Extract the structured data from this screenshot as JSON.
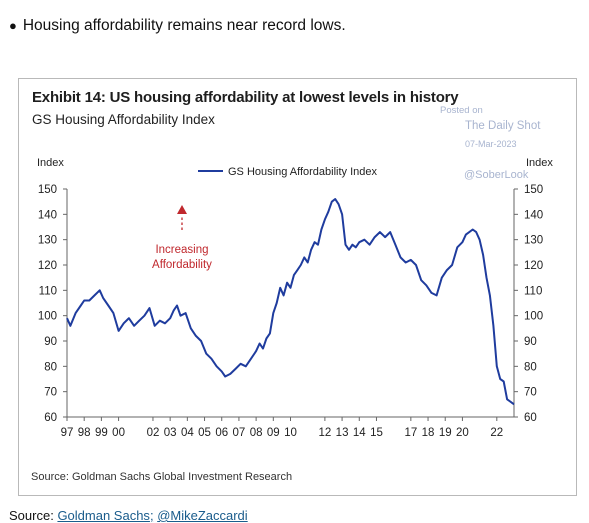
{
  "bullet_text": "Housing affordability remains near record lows.",
  "exhibit_title": "Exhibit 14: US housing affordability at lowest levels in history",
  "exhibit_subtitle": "GS Housing Affordability Index",
  "watermark": {
    "posted_on": "Posted on",
    "site": "The Daily Shot",
    "date": "07-Mar-2023",
    "handle": "@SoberLook"
  },
  "source_inside": "Source: Goldman Sachs Global Investment Research",
  "source_label": "Source:",
  "source_link1": "Goldman Sachs",
  "source_link2": "@MikeZaccardi",
  "colors": {
    "line": "#1f3c9e",
    "annotation": "#c0282d"
  },
  "chart_data": {
    "type": "line",
    "title": "Exhibit 14: US housing affordability at lowest levels in history",
    "subtitle": "GS Housing Affordability Index",
    "ylabel_left": "Index",
    "ylabel_right": "Index",
    "ylim": [
      60,
      150
    ],
    "yticks": [
      60,
      70,
      80,
      90,
      100,
      110,
      120,
      130,
      140,
      150
    ],
    "xlim": [
      1997,
      2023
    ],
    "xticks": [
      1997,
      1998,
      1999,
      2000,
      2002,
      2003,
      2004,
      2005,
      2006,
      2007,
      2008,
      2009,
      2010,
      2012,
      2013,
      2014,
      2015,
      2017,
      2018,
      2019,
      2020,
      2022
    ],
    "xtick_labels": [
      "97",
      "98",
      "99",
      "00",
      "02",
      "03",
      "04",
      "05",
      "06",
      "07",
      "08",
      "09",
      "10",
      "12",
      "13",
      "14",
      "15",
      "17",
      "18",
      "19",
      "20",
      "22"
    ],
    "legend_position": "top-center",
    "annotation": {
      "line1": "Increasing",
      "line2": "Affordability"
    },
    "series": [
      {
        "name": "GS Housing Affordability Index",
        "x": [
          1997.0,
          1997.2,
          1997.5,
          1997.8,
          1998.0,
          1998.3,
          1998.6,
          1998.9,
          1999.1,
          1999.4,
          1999.7,
          2000.0,
          2000.3,
          2000.6,
          2000.9,
          2001.2,
          2001.5,
          2001.8,
          2002.1,
          2002.4,
          2002.7,
          2003.0,
          2003.2,
          2003.4,
          2003.6,
          2003.9,
          2004.2,
          2004.5,
          2004.8,
          2005.1,
          2005.4,
          2005.7,
          2006.0,
          2006.2,
          2006.5,
          2006.8,
          2007.1,
          2007.4,
          2007.7,
          2008.0,
          2008.2,
          2008.4,
          2008.6,
          2008.8,
          2009.0,
          2009.2,
          2009.4,
          2009.6,
          2009.8,
          2010.0,
          2010.2,
          2010.4,
          2010.6,
          2010.8,
          2011.0,
          2011.2,
          2011.4,
          2011.6,
          2011.8,
          2012.0,
          2012.2,
          2012.4,
          2012.6,
          2012.8,
          2013.0,
          2013.2,
          2013.4,
          2013.6,
          2013.8,
          2014.0,
          2014.3,
          2014.6,
          2014.9,
          2015.2,
          2015.5,
          2015.8,
          2016.1,
          2016.4,
          2016.7,
          2017.0,
          2017.3,
          2017.6,
          2017.9,
          2018.2,
          2018.5,
          2018.8,
          2019.1,
          2019.4,
          2019.7,
          2020.0,
          2020.2,
          2020.4,
          2020.6,
          2020.8,
          2021.0,
          2021.2,
          2021.4,
          2021.6,
          2021.8,
          2022.0,
          2022.2,
          2022.4,
          2022.6,
          2022.8,
          2023.0
        ],
        "values": [
          99,
          96,
          101,
          104,
          106,
          106,
          108,
          110,
          107,
          104,
          101,
          94,
          97,
          99,
          96,
          98,
          100,
          103,
          96,
          98,
          97,
          99,
          102,
          104,
          100,
          101,
          95,
          92,
          90,
          85,
          83,
          80,
          78,
          76,
          77,
          79,
          81,
          80,
          83,
          86,
          89,
          87,
          91,
          93,
          101,
          105,
          111,
          108,
          113,
          111,
          116,
          118,
          120,
          123,
          121,
          126,
          129,
          128,
          134,
          138,
          141,
          145,
          146,
          144,
          140,
          128,
          126,
          128,
          127,
          129,
          130,
          128,
          131,
          133,
          131,
          133,
          128,
          123,
          121,
          122,
          120,
          114,
          112,
          109,
          108,
          115,
          118,
          120,
          127,
          129,
          132,
          133,
          134,
          133,
          130,
          124,
          115,
          108,
          96,
          80,
          75,
          74,
          67,
          66,
          65
        ]
      }
    ]
  }
}
